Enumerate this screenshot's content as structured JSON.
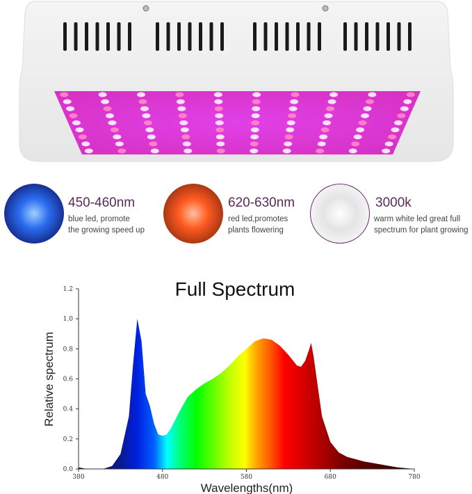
{
  "features": [
    {
      "title": "450-460nm",
      "desc": [
        "blue led, promote",
        "the growing speed up"
      ],
      "color": "#1e4fd8"
    },
    {
      "title": "620-630nm",
      "desc": [
        "red led,promotes",
        "plants flowering"
      ],
      "color": "#e8501c"
    },
    {
      "title": "3000k",
      "desc": [
        "warm white led great full",
        "spectrum for plant growing"
      ],
      "color": "#d8d8d8"
    }
  ],
  "chart_data": {
    "type": "area",
    "title": "Full Spectrum",
    "xlabel": "Wavelengths(nm)",
    "ylabel": "Relative spectrum",
    "xlim": [
      380,
      780
    ],
    "ylim": [
      0,
      1.2
    ],
    "xticks": [
      "380",
      "480",
      "580",
      "680",
      "780"
    ],
    "yticks": [
      "0.0",
      "0.2",
      "0.4",
      "0.6",
      "0.8",
      "1.0",
      "1.2"
    ],
    "grid": false,
    "x": [
      380,
      390,
      400,
      410,
      420,
      430,
      440,
      445,
      450,
      455,
      460,
      465,
      470,
      475,
      480,
      485,
      490,
      500,
      510,
      520,
      530,
      540,
      550,
      560,
      570,
      580,
      590,
      600,
      610,
      620,
      630,
      640,
      645,
      650,
      655,
      657,
      660,
      665,
      670,
      680,
      690,
      700,
      720,
      740,
      760,
      780
    ],
    "y": [
      0.01,
      0.0,
      0.0,
      0.002,
      0.02,
      0.1,
      0.35,
      0.7,
      1.0,
      0.85,
      0.5,
      0.42,
      0.3,
      0.23,
      0.22,
      0.23,
      0.27,
      0.38,
      0.48,
      0.53,
      0.57,
      0.6,
      0.64,
      0.69,
      0.75,
      0.8,
      0.85,
      0.87,
      0.86,
      0.82,
      0.76,
      0.69,
      0.68,
      0.72,
      0.8,
      0.84,
      0.75,
      0.55,
      0.35,
      0.18,
      0.11,
      0.08,
      0.05,
      0.03,
      0.01,
      0.0
    ],
    "fill": "visible-spectrum gradient by wavelength"
  }
}
